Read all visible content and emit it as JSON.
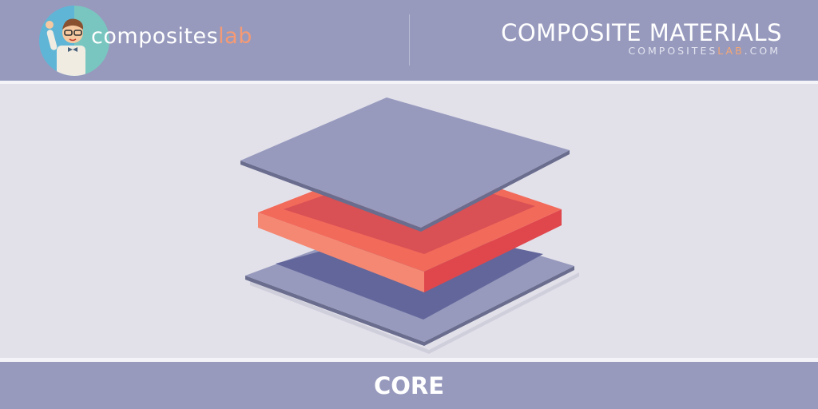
{
  "header": {
    "logo": {
      "text_main": "composites",
      "text_accent": "lab"
    },
    "title": "COMPOSITE MATERIALS",
    "subtitle_main": "COMPOSITES",
    "subtitle_accent": "LAB",
    "subtitle_suffix": ".COM"
  },
  "footer": {
    "label": "CORE"
  },
  "colors": {
    "header_bg": "#979abd",
    "content_bg": "#e2e1ea",
    "skin_plate": "#979abd",
    "core": "#f26a5a",
    "accent": "#f59a74"
  }
}
